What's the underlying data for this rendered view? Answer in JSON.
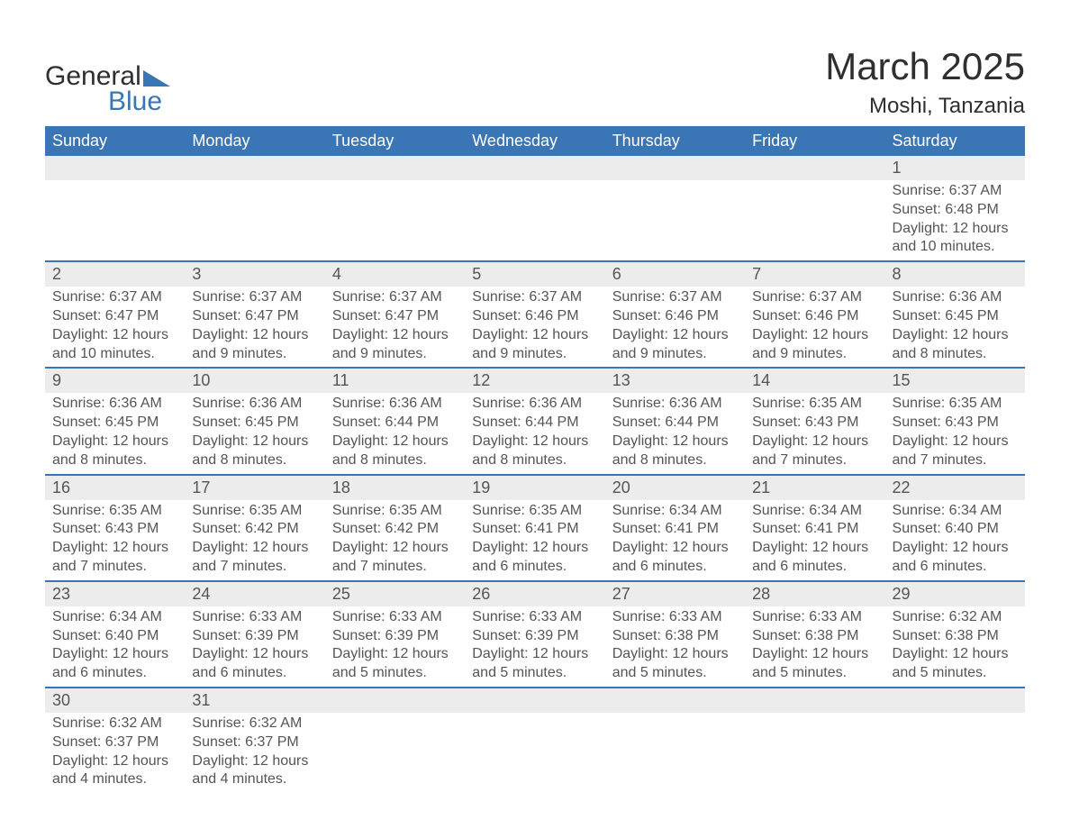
{
  "logo": {
    "text_top": "General",
    "text_bottom": "Blue",
    "triangle_color": "#3a75b5",
    "top_color": "#2f2f2f"
  },
  "title": "March 2025",
  "location": "Moshi, Tanzania",
  "colors": {
    "header_bg": "#3a75b5",
    "header_text": "#ffffff",
    "daynum_bg": "#ececec",
    "text": "#555555",
    "border": "#3a75b5",
    "page_bg": "#ffffff"
  },
  "fonts": {
    "title_size": 42,
    "location_size": 24,
    "header_size": 18,
    "daynum_size": 18,
    "body_size": 16
  },
  "weekdays": [
    "Sunday",
    "Monday",
    "Tuesday",
    "Wednesday",
    "Thursday",
    "Friday",
    "Saturday"
  ],
  "weeks": [
    [
      {
        "day": "",
        "empty": true
      },
      {
        "day": "",
        "empty": true
      },
      {
        "day": "",
        "empty": true
      },
      {
        "day": "",
        "empty": true
      },
      {
        "day": "",
        "empty": true
      },
      {
        "day": "",
        "empty": true
      },
      {
        "day": "1",
        "sunrise": "Sunrise: 6:37 AM",
        "sunset": "Sunset: 6:48 PM",
        "daylight1": "Daylight: 12 hours",
        "daylight2": "and 10 minutes."
      }
    ],
    [
      {
        "day": "2",
        "sunrise": "Sunrise: 6:37 AM",
        "sunset": "Sunset: 6:47 PM",
        "daylight1": "Daylight: 12 hours",
        "daylight2": "and 10 minutes."
      },
      {
        "day": "3",
        "sunrise": "Sunrise: 6:37 AM",
        "sunset": "Sunset: 6:47 PM",
        "daylight1": "Daylight: 12 hours",
        "daylight2": "and 9 minutes."
      },
      {
        "day": "4",
        "sunrise": "Sunrise: 6:37 AM",
        "sunset": "Sunset: 6:47 PM",
        "daylight1": "Daylight: 12 hours",
        "daylight2": "and 9 minutes."
      },
      {
        "day": "5",
        "sunrise": "Sunrise: 6:37 AM",
        "sunset": "Sunset: 6:46 PM",
        "daylight1": "Daylight: 12 hours",
        "daylight2": "and 9 minutes."
      },
      {
        "day": "6",
        "sunrise": "Sunrise: 6:37 AM",
        "sunset": "Sunset: 6:46 PM",
        "daylight1": "Daylight: 12 hours",
        "daylight2": "and 9 minutes."
      },
      {
        "day": "7",
        "sunrise": "Sunrise: 6:37 AM",
        "sunset": "Sunset: 6:46 PM",
        "daylight1": "Daylight: 12 hours",
        "daylight2": "and 9 minutes."
      },
      {
        "day": "8",
        "sunrise": "Sunrise: 6:36 AM",
        "sunset": "Sunset: 6:45 PM",
        "daylight1": "Daylight: 12 hours",
        "daylight2": "and 8 minutes."
      }
    ],
    [
      {
        "day": "9",
        "sunrise": "Sunrise: 6:36 AM",
        "sunset": "Sunset: 6:45 PM",
        "daylight1": "Daylight: 12 hours",
        "daylight2": "and 8 minutes."
      },
      {
        "day": "10",
        "sunrise": "Sunrise: 6:36 AM",
        "sunset": "Sunset: 6:45 PM",
        "daylight1": "Daylight: 12 hours",
        "daylight2": "and 8 minutes."
      },
      {
        "day": "11",
        "sunrise": "Sunrise: 6:36 AM",
        "sunset": "Sunset: 6:44 PM",
        "daylight1": "Daylight: 12 hours",
        "daylight2": "and 8 minutes."
      },
      {
        "day": "12",
        "sunrise": "Sunrise: 6:36 AM",
        "sunset": "Sunset: 6:44 PM",
        "daylight1": "Daylight: 12 hours",
        "daylight2": "and 8 minutes."
      },
      {
        "day": "13",
        "sunrise": "Sunrise: 6:36 AM",
        "sunset": "Sunset: 6:44 PM",
        "daylight1": "Daylight: 12 hours",
        "daylight2": "and 8 minutes."
      },
      {
        "day": "14",
        "sunrise": "Sunrise: 6:35 AM",
        "sunset": "Sunset: 6:43 PM",
        "daylight1": "Daylight: 12 hours",
        "daylight2": "and 7 minutes."
      },
      {
        "day": "15",
        "sunrise": "Sunrise: 6:35 AM",
        "sunset": "Sunset: 6:43 PM",
        "daylight1": "Daylight: 12 hours",
        "daylight2": "and 7 minutes."
      }
    ],
    [
      {
        "day": "16",
        "sunrise": "Sunrise: 6:35 AM",
        "sunset": "Sunset: 6:43 PM",
        "daylight1": "Daylight: 12 hours",
        "daylight2": "and 7 minutes."
      },
      {
        "day": "17",
        "sunrise": "Sunrise: 6:35 AM",
        "sunset": "Sunset: 6:42 PM",
        "daylight1": "Daylight: 12 hours",
        "daylight2": "and 7 minutes."
      },
      {
        "day": "18",
        "sunrise": "Sunrise: 6:35 AM",
        "sunset": "Sunset: 6:42 PM",
        "daylight1": "Daylight: 12 hours",
        "daylight2": "and 7 minutes."
      },
      {
        "day": "19",
        "sunrise": "Sunrise: 6:35 AM",
        "sunset": "Sunset: 6:41 PM",
        "daylight1": "Daylight: 12 hours",
        "daylight2": "and 6 minutes."
      },
      {
        "day": "20",
        "sunrise": "Sunrise: 6:34 AM",
        "sunset": "Sunset: 6:41 PM",
        "daylight1": "Daylight: 12 hours",
        "daylight2": "and 6 minutes."
      },
      {
        "day": "21",
        "sunrise": "Sunrise: 6:34 AM",
        "sunset": "Sunset: 6:41 PM",
        "daylight1": "Daylight: 12 hours",
        "daylight2": "and 6 minutes."
      },
      {
        "day": "22",
        "sunrise": "Sunrise: 6:34 AM",
        "sunset": "Sunset: 6:40 PM",
        "daylight1": "Daylight: 12 hours",
        "daylight2": "and 6 minutes."
      }
    ],
    [
      {
        "day": "23",
        "sunrise": "Sunrise: 6:34 AM",
        "sunset": "Sunset: 6:40 PM",
        "daylight1": "Daylight: 12 hours",
        "daylight2": "and 6 minutes."
      },
      {
        "day": "24",
        "sunrise": "Sunrise: 6:33 AM",
        "sunset": "Sunset: 6:39 PM",
        "daylight1": "Daylight: 12 hours",
        "daylight2": "and 6 minutes."
      },
      {
        "day": "25",
        "sunrise": "Sunrise: 6:33 AM",
        "sunset": "Sunset: 6:39 PM",
        "daylight1": "Daylight: 12 hours",
        "daylight2": "and 5 minutes."
      },
      {
        "day": "26",
        "sunrise": "Sunrise: 6:33 AM",
        "sunset": "Sunset: 6:39 PM",
        "daylight1": "Daylight: 12 hours",
        "daylight2": "and 5 minutes."
      },
      {
        "day": "27",
        "sunrise": "Sunrise: 6:33 AM",
        "sunset": "Sunset: 6:38 PM",
        "daylight1": "Daylight: 12 hours",
        "daylight2": "and 5 minutes."
      },
      {
        "day": "28",
        "sunrise": "Sunrise: 6:33 AM",
        "sunset": "Sunset: 6:38 PM",
        "daylight1": "Daylight: 12 hours",
        "daylight2": "and 5 minutes."
      },
      {
        "day": "29",
        "sunrise": "Sunrise: 6:32 AM",
        "sunset": "Sunset: 6:38 PM",
        "daylight1": "Daylight: 12 hours",
        "daylight2": "and 5 minutes."
      }
    ],
    [
      {
        "day": "30",
        "sunrise": "Sunrise: 6:32 AM",
        "sunset": "Sunset: 6:37 PM",
        "daylight1": "Daylight: 12 hours",
        "daylight2": "and 4 minutes."
      },
      {
        "day": "31",
        "sunrise": "Sunrise: 6:32 AM",
        "sunset": "Sunset: 6:37 PM",
        "daylight1": "Daylight: 12 hours",
        "daylight2": "and 4 minutes."
      },
      {
        "day": "",
        "empty": true
      },
      {
        "day": "",
        "empty": true
      },
      {
        "day": "",
        "empty": true
      },
      {
        "day": "",
        "empty": true
      },
      {
        "day": "",
        "empty": true
      }
    ]
  ]
}
